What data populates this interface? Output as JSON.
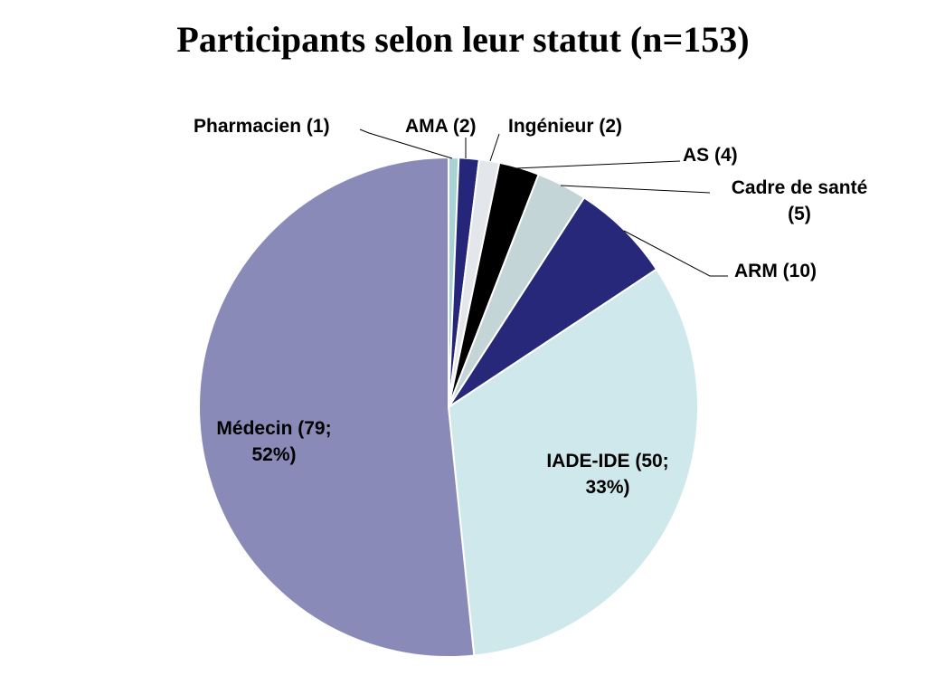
{
  "chart_data": {
    "type": "pie",
    "title": "Participants selon  leur statut (n=153)",
    "slices": [
      {
        "name": "Pharmacien",
        "value": 1,
        "label": "Pharmacien (1)",
        "color": "#a9d2d4"
      },
      {
        "name": "AMA",
        "value": 2,
        "label": "AMA (2)",
        "color": "#25267a"
      },
      {
        "name": "Ingénieur",
        "value": 2,
        "label": "Ingénieur (2)",
        "color": "#e3e6ea"
      },
      {
        "name": "AS",
        "value": 4,
        "label": "AS (4)",
        "color": "#000000"
      },
      {
        "name": "Cadre de santé",
        "value": 5,
        "label_lines": [
          "Cadre de santé",
          "(5)"
        ],
        "color": "#c4d5d7"
      },
      {
        "name": "ARM",
        "value": 10,
        "label": "ARM (10)",
        "color": "#27287a"
      },
      {
        "name": "IADE-IDE",
        "value": 50,
        "label_lines": [
          "IADE-IDE (50;",
          "33%)"
        ],
        "color": "#cfe8ec"
      },
      {
        "name": "Médecin",
        "value": 79,
        "label_lines": [
          "Médecin (79;",
          "52%)"
        ],
        "color": "#8a8ab8"
      }
    ],
    "start": "top",
    "direction": "clockwise",
    "legend": "none"
  }
}
